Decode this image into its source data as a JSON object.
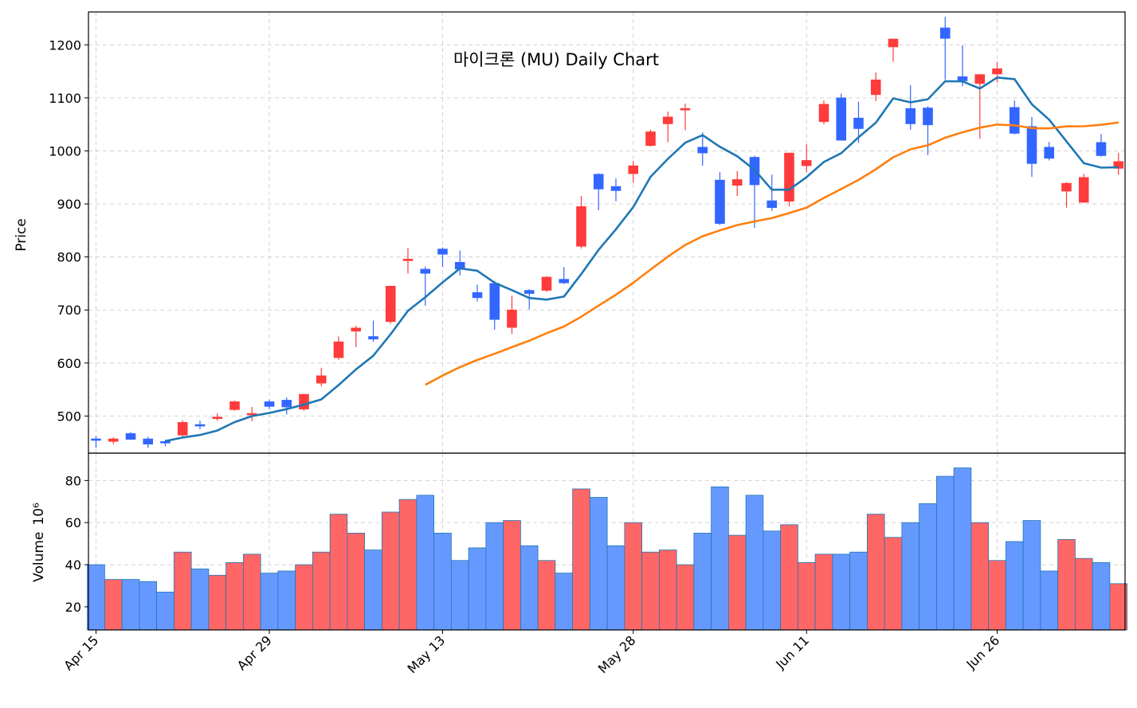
{
  "chart_data": {
    "type": "candlestick",
    "title": "마이크론 (MU) Daily Chart",
    "ylabel_price": "Price",
    "ylabel_volume": "Volume",
    "volume_multiplier": "10⁶",
    "x_tick_labels": [
      "Apr 15",
      "Apr 29",
      "May 13",
      "May 28",
      "Jun 11",
      "Jun 26"
    ],
    "price_yticks": [
      500,
      600,
      700,
      800,
      900,
      1000,
      1100,
      1200
    ],
    "volume_yticks": [
      20,
      40,
      60,
      80
    ],
    "price_ylim": [
      430,
      1262
    ],
    "volume_ylim": [
      9,
      93
    ],
    "moving_averages": [
      {
        "window": 5,
        "color": "#1f77b4"
      },
      {
        "window": 20,
        "color": "#ff7f0e"
      }
    ],
    "colors": {
      "up": "#ff3b3b",
      "down": "#3366ff",
      "up_volume": "#ff6666",
      "down_volume": "#6699ff",
      "volume_edge": "#1f77b4"
    },
    "grid": true,
    "candles": [
      {
        "date": "Apr 15",
        "open": 457,
        "high": 462,
        "low": 440,
        "close": 455,
        "volume": 40
      },
      {
        "date": "Apr 16",
        "open": 452,
        "high": 460,
        "low": 447,
        "close": 457,
        "volume": 33
      },
      {
        "date": "Apr 17",
        "open": 467,
        "high": 470,
        "low": 455,
        "close": 456,
        "volume": 33
      },
      {
        "date": "Apr 18",
        "open": 457,
        "high": 461,
        "low": 440,
        "close": 447,
        "volume": 32
      },
      {
        "date": "Apr 21",
        "open": 452,
        "high": 455,
        "low": 443,
        "close": 449,
        "volume": 27
      },
      {
        "date": "Apr 22",
        "open": 464,
        "high": 492,
        "low": 460,
        "close": 488,
        "volume": 46
      },
      {
        "date": "Apr 23",
        "open": 484,
        "high": 491,
        "low": 475,
        "close": 481,
        "volume": 38
      },
      {
        "date": "Apr 24",
        "open": 496,
        "high": 505,
        "low": 491,
        "close": 498,
        "volume": 35
      },
      {
        "date": "Apr 25",
        "open": 512,
        "high": 529,
        "low": 510,
        "close": 527,
        "volume": 41
      },
      {
        "date": "Apr 28",
        "open": 502,
        "high": 517,
        "low": 490,
        "close": 505,
        "volume": 45
      },
      {
        "date": "Apr 29",
        "open": 527,
        "high": 531,
        "low": 513,
        "close": 518,
        "volume": 36
      },
      {
        "date": "Apr 30",
        "open": 530,
        "high": 535,
        "low": 503,
        "close": 517,
        "volume": 37
      },
      {
        "date": "May 1",
        "open": 513,
        "high": 542,
        "low": 510,
        "close": 541,
        "volume": 40
      },
      {
        "date": "May 2",
        "open": 562,
        "high": 591,
        "low": 556,
        "close": 576,
        "volume": 46
      },
      {
        "date": "May 5",
        "open": 610,
        "high": 650,
        "low": 606,
        "close": 640,
        "volume": 64
      },
      {
        "date": "May 6",
        "open": 660,
        "high": 670,
        "low": 630,
        "close": 666,
        "volume": 55
      },
      {
        "date": "May 7",
        "open": 650,
        "high": 680,
        "low": 640,
        "close": 645,
        "volume": 47
      },
      {
        "date": "May 8",
        "open": 678,
        "high": 745,
        "low": 674,
        "close": 745,
        "volume": 65
      },
      {
        "date": "May 9",
        "open": 793,
        "high": 817,
        "low": 769,
        "close": 796,
        "volume": 71
      },
      {
        "date": "May 12",
        "open": 777,
        "high": 782,
        "low": 708,
        "close": 769,
        "volume": 73
      },
      {
        "date": "May 13",
        "open": 815,
        "high": 818,
        "low": 781,
        "close": 805,
        "volume": 55
      },
      {
        "date": "May 14",
        "open": 790,
        "high": 812,
        "low": 765,
        "close": 777,
        "volume": 42
      },
      {
        "date": "May 15",
        "open": 733,
        "high": 748,
        "low": 716,
        "close": 723,
        "volume": 48
      },
      {
        "date": "May 16",
        "open": 750,
        "high": 755,
        "low": 663,
        "close": 682,
        "volume": 60
      },
      {
        "date": "May 19",
        "open": 667,
        "high": 727,
        "low": 655,
        "close": 700,
        "volume": 61
      },
      {
        "date": "May 20",
        "open": 737,
        "high": 739,
        "low": 701,
        "close": 731,
        "volume": 49
      },
      {
        "date": "May 21",
        "open": 737,
        "high": 764,
        "low": 734,
        "close": 762,
        "volume": 42
      },
      {
        "date": "May 22",
        "open": 758,
        "high": 781,
        "low": 749,
        "close": 751,
        "volume": 36
      },
      {
        "date": "May 23",
        "open": 820,
        "high": 915,
        "low": 816,
        "close": 895,
        "volume": 76
      },
      {
        "date": "May 26",
        "open": 956,
        "high": 958,
        "low": 888,
        "close": 928,
        "volume": 72
      },
      {
        "date": "May 27",
        "open": 933,
        "high": 948,
        "low": 905,
        "close": 925,
        "volume": 49
      },
      {
        "date": "May 28",
        "open": 957,
        "high": 981,
        "low": 940,
        "close": 972,
        "volume": 60
      },
      {
        "date": "May 29",
        "open": 1010,
        "high": 1040,
        "low": 1008,
        "close": 1036,
        "volume": 46
      },
      {
        "date": "May 30",
        "open": 1051,
        "high": 1074,
        "low": 1016,
        "close": 1064,
        "volume": 47
      },
      {
        "date": "Jun 2",
        "open": 1077,
        "high": 1089,
        "low": 1039,
        "close": 1080,
        "volume": 40
      },
      {
        "date": "Jun 3",
        "open": 1007,
        "high": 1035,
        "low": 972,
        "close": 996,
        "volume": 55
      },
      {
        "date": "Jun 4",
        "open": 945,
        "high": 960,
        "low": 860,
        "close": 863,
        "volume": 77
      },
      {
        "date": "Jun 5",
        "open": 935,
        "high": 962,
        "low": 915,
        "close": 946,
        "volume": 54
      },
      {
        "date": "Jun 6",
        "open": 988,
        "high": 991,
        "low": 855,
        "close": 936,
        "volume": 73
      },
      {
        "date": "Jun 9",
        "open": 906,
        "high": 955,
        "low": 887,
        "close": 893,
        "volume": 56
      },
      {
        "date": "Jun 10",
        "open": 905,
        "high": 996,
        "low": 895,
        "close": 996,
        "volume": 59
      },
      {
        "date": "Jun 11",
        "open": 972,
        "high": 1012,
        "low": 960,
        "close": 982,
        "volume": 41
      },
      {
        "date": "Jun 12",
        "open": 1055,
        "high": 1095,
        "low": 1050,
        "close": 1088,
        "volume": 45
      },
      {
        "date": "Jun 13",
        "open": 1100,
        "high": 1108,
        "low": 1020,
        "close": 1020,
        "volume": 45
      },
      {
        "date": "Jun 16",
        "open": 1062,
        "high": 1093,
        "low": 1015,
        "close": 1042,
        "volume": 46
      },
      {
        "date": "Jun 17",
        "open": 1106,
        "high": 1148,
        "low": 1094,
        "close": 1134,
        "volume": 64
      },
      {
        "date": "Jun 18",
        "open": 1196,
        "high": 1211,
        "low": 1168,
        "close": 1211,
        "volume": 53
      },
      {
        "date": "Jun 19",
        "open": 1080,
        "high": 1124,
        "low": 1040,
        "close": 1051,
        "volume": 60
      },
      {
        "date": "Jun 20",
        "open": 1081,
        "high": 1084,
        "low": 992,
        "close": 1049,
        "volume": 69
      },
      {
        "date": "Jun 23",
        "open": 1232,
        "high": 1253,
        "low": 1134,
        "close": 1212,
        "volume": 82
      },
      {
        "date": "Jun 24",
        "open": 1140,
        "high": 1199,
        "low": 1122,
        "close": 1132,
        "volume": 86
      },
      {
        "date": "Jun 25",
        "open": 1127,
        "high": 1145,
        "low": 1023,
        "close": 1144,
        "volume": 60
      },
      {
        "date": "Jun 26",
        "open": 1145,
        "high": 1168,
        "low": 1129,
        "close": 1155,
        "volume": 42
      },
      {
        "date": "Jun 27",
        "open": 1082,
        "high": 1095,
        "low": 1031,
        "close": 1033,
        "volume": 51
      },
      {
        "date": "Jun 30",
        "open": 1046,
        "high": 1064,
        "low": 951,
        "close": 976,
        "volume": 61
      },
      {
        "date": "Jul 1",
        "open": 1007,
        "high": 1017,
        "low": 982,
        "close": 986,
        "volume": 37
      },
      {
        "date": "Jul 2",
        "open": 924,
        "high": 941,
        "low": 893,
        "close": 939,
        "volume": 52
      },
      {
        "date": "Jul 3",
        "open": 903,
        "high": 957,
        "low": 902,
        "close": 950,
        "volume": 43
      },
      {
        "date": "Jul 4",
        "open": 1016,
        "high": 1032,
        "low": 989,
        "close": 991,
        "volume": 41
      },
      {
        "date": "Jul 7",
        "open": 967,
        "high": 996,
        "low": 955,
        "close": 980,
        "volume": 31
      }
    ]
  }
}
